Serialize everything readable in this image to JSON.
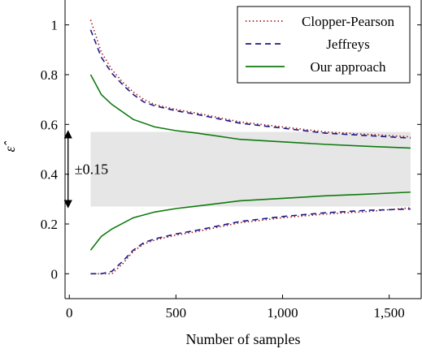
{
  "chart_data": {
    "type": "line",
    "xlabel": "Number of samples",
    "ylabel": "ε̂",
    "xlim": [
      -20,
      1650
    ],
    "ylim": [
      -0.1,
      1.1
    ],
    "xticks": [
      0,
      500,
      1000,
      1500
    ],
    "xtick_labels": [
      "0",
      "500",
      "1,000",
      "1,500"
    ],
    "yticks": [
      0,
      0.2,
      0.4,
      0.6,
      0.8,
      1
    ],
    "ytick_labels": [
      "0",
      "0.2",
      "0.4",
      "0.6",
      "0.8",
      "1"
    ],
    "grid": false,
    "legend_position": "top-right",
    "band": {
      "x": [
        100,
        1600
      ],
      "y": [
        0.27,
        0.57
      ],
      "color": "#e6e6e6"
    },
    "annotation": {
      "text": "±0.15",
      "x": 200,
      "y_from": 0.27,
      "y_to": 0.57
    },
    "series": [
      {
        "name": "Clopper-Pearson",
        "color": "#a11010",
        "style": "dotted",
        "x": [
          100,
          150,
          200,
          250,
          300,
          350,
          400,
          500,
          600,
          800,
          1000,
          1200,
          1400,
          1600
        ],
        "upper": [
          1.02,
          0.89,
          0.82,
          0.77,
          0.73,
          0.7,
          0.68,
          0.66,
          0.645,
          0.61,
          0.59,
          0.57,
          0.56,
          0.55
        ],
        "lower": [
          0.0,
          0.0,
          0.0,
          0.04,
          0.09,
          0.12,
          0.135,
          0.155,
          0.17,
          0.205,
          0.225,
          0.24,
          0.25,
          0.265
        ]
      },
      {
        "name": "Jeffreys",
        "color": "#1a1a8c",
        "style": "dashed",
        "x": [
          100,
          150,
          200,
          250,
          300,
          350,
          400,
          500,
          600,
          800,
          1000,
          1200,
          1400,
          1600
        ],
        "upper": [
          0.98,
          0.87,
          0.805,
          0.76,
          0.72,
          0.69,
          0.675,
          0.655,
          0.64,
          0.605,
          0.585,
          0.565,
          0.555,
          0.545
        ],
        "lower": [
          0.0,
          0.0,
          0.01,
          0.05,
          0.095,
          0.125,
          0.14,
          0.16,
          0.175,
          0.21,
          0.23,
          0.245,
          0.255,
          0.26
        ]
      },
      {
        "name": "Our approach",
        "color": "#0f7a0f",
        "style": "solid",
        "x": [
          100,
          150,
          200,
          300,
          400,
          500,
          600,
          800,
          1000,
          1200,
          1400,
          1600
        ],
        "upper": [
          0.8,
          0.72,
          0.68,
          0.62,
          0.59,
          0.575,
          0.565,
          0.54,
          0.53,
          0.52,
          0.512,
          0.505
        ],
        "lower": [
          0.095,
          0.15,
          0.18,
          0.225,
          0.248,
          0.262,
          0.272,
          0.293,
          0.303,
          0.313,
          0.32,
          0.328
        ]
      }
    ]
  }
}
